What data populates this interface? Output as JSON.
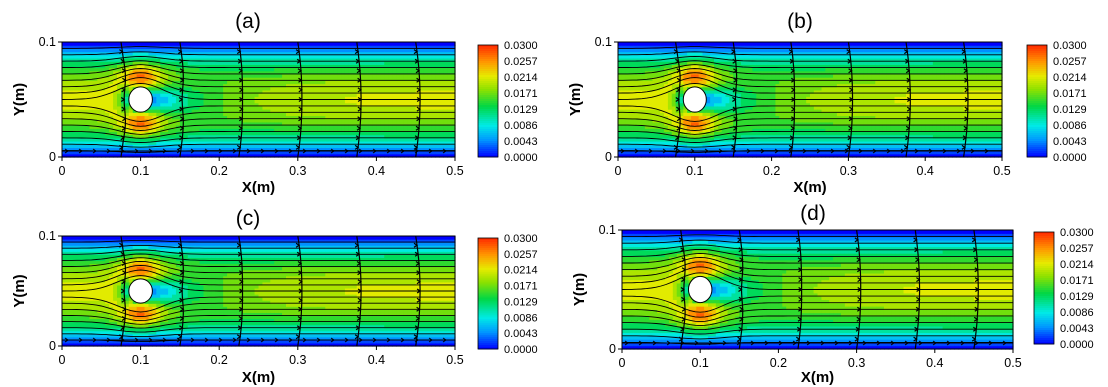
{
  "figure": {
    "panel_count": 4
  },
  "chart_data": [
    {
      "type": "heatmap",
      "title": "(a)",
      "xlabel": "X(m)",
      "ylabel": "Y(m)",
      "xlim": [
        0,
        0.5
      ],
      "ylim": [
        0,
        0.1
      ],
      "xticks": [
        "0",
        "0.1",
        "0.2",
        "0.3",
        "0.4",
        "0.5"
      ],
      "yticks": [
        "0",
        "0.1"
      ],
      "colorbar": {
        "levels": [
          "0.0300",
          "0.0257",
          "0.0214",
          "0.0171",
          "0.0129",
          "0.0086",
          "0.0043",
          "0.0000"
        ],
        "min": 0.0,
        "max": 0.03,
        "colors": [
          "#0000ff",
          "#00a0ff",
          "#00ffe0",
          "#00e040",
          "#80e000",
          "#e0f000",
          "#ffa000",
          "#ff3000"
        ]
      },
      "obstacle": {
        "shape": "ellipse",
        "cx": 0.1,
        "cy": 0.05,
        "rx": 0.015,
        "ry": 0.011
      },
      "inlet_velocity_max": 0.022,
      "profile_stations_x": [
        0.075,
        0.15,
        0.225,
        0.3,
        0.375,
        0.45
      ],
      "grid": false
    },
    {
      "type": "heatmap",
      "title": "(b)",
      "xlabel": "X(m)",
      "ylabel": "Y(m)",
      "xlim": [
        0,
        0.5
      ],
      "ylim": [
        0,
        0.1
      ],
      "xticks": [
        "0",
        "0.1",
        "0.2",
        "0.3",
        "0.4",
        "0.5"
      ],
      "yticks": [
        "0",
        "0.1"
      ],
      "colorbar": {
        "levels": [
          "0.0300",
          "0.0257",
          "0.0214",
          "0.0171",
          "0.0129",
          "0.0086",
          "0.0043",
          "0.0000"
        ],
        "min": 0.0,
        "max": 0.03,
        "colors": [
          "#0000ff",
          "#00a0ff",
          "#00ffe0",
          "#00e040",
          "#80e000",
          "#e0f000",
          "#ffa000",
          "#ff3000"
        ]
      },
      "obstacle": {
        "shape": "ellipse",
        "cx": 0.1,
        "cy": 0.05,
        "rx": 0.015,
        "ry": 0.011
      },
      "inlet_velocity_max": 0.022,
      "profile_stations_x": [
        0.075,
        0.15,
        0.225,
        0.3,
        0.375,
        0.45
      ],
      "grid": false
    },
    {
      "type": "heatmap",
      "title": "(c)",
      "xlabel": "X(m)",
      "ylabel": "Y(m)",
      "xlim": [
        0,
        0.5
      ],
      "ylim": [
        0,
        0.1
      ],
      "xticks": [
        "0",
        "0.1",
        "0.2",
        "0.3",
        "0.4",
        "0.5"
      ],
      "yticks": [
        "0",
        "0.1"
      ],
      "colorbar": {
        "levels": [
          "0.0300",
          "0.0257",
          "0.0214",
          "0.0171",
          "0.0129",
          "0.0086",
          "0.0043",
          "0.0000"
        ],
        "min": 0.0,
        "max": 0.03,
        "colors": [
          "#0000ff",
          "#00a0ff",
          "#00ffe0",
          "#00e040",
          "#80e000",
          "#e0f000",
          "#ffa000",
          "#ff3000"
        ]
      },
      "obstacle": {
        "shape": "ellipse",
        "cx": 0.1,
        "cy": 0.05,
        "rx": 0.015,
        "ry": 0.011
      },
      "inlet_velocity_max": 0.022,
      "profile_stations_x": [
        0.075,
        0.15,
        0.225,
        0.3,
        0.375,
        0.45
      ],
      "grid": false
    },
    {
      "type": "heatmap",
      "title": "(d)",
      "xlabel": "X(m)",
      "ylabel": "Y(m)",
      "xlim": [
        0,
        0.5
      ],
      "ylim": [
        0,
        0.1
      ],
      "xticks": [
        "0",
        "0.1",
        "0.2",
        "0.3",
        "0.4",
        "0.5"
      ],
      "yticks": [
        "0",
        "0.1"
      ],
      "colorbar": {
        "levels": [
          "0.0300",
          "0.0257",
          "0.0214",
          "0.0171",
          "0.0129",
          "0.0086",
          "0.0043",
          "0.0000"
        ],
        "min": 0.0,
        "max": 0.03,
        "colors": [
          "#0000ff",
          "#00a0ff",
          "#00ffe0",
          "#00e040",
          "#80e000",
          "#e0f000",
          "#ffa000",
          "#ff3000"
        ]
      },
      "obstacle": {
        "shape": "ellipse",
        "cx": 0.1,
        "cy": 0.05,
        "rx": 0.015,
        "ry": 0.011
      },
      "inlet_velocity_max": 0.022,
      "profile_stations_x": [
        0.075,
        0.15,
        0.225,
        0.3,
        0.375,
        0.45
      ],
      "grid": false
    }
  ]
}
